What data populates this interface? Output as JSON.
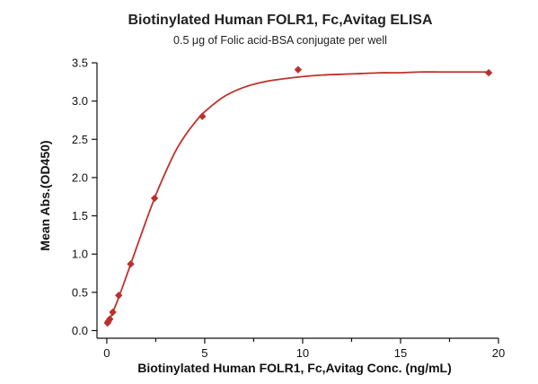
{
  "chart_data": {
    "type": "scatter",
    "title": "Biotinylated Human FOLR1, Fc,Avitag ELISA",
    "subtitle": "0.5 μg of Folic acid-BSA conjugate per well",
    "xlabel": "Biotinylated Human FOLR1, Fc,Avitag Conc. (ng/mL)",
    "ylabel": "Mean Abs.(OD450)",
    "xlim": [
      -0.5,
      20
    ],
    "ylim": [
      -0.1,
      3.5
    ],
    "x_ticks": [
      0,
      5,
      10,
      15,
      20
    ],
    "x_minor_ticks": [
      2.5,
      7.5,
      12.5,
      17.5
    ],
    "y_ticks": [
      0.0,
      0.5,
      1.0,
      1.5,
      2.0,
      2.5,
      3.0,
      3.5
    ],
    "x_tick_labels": [
      "0",
      "5",
      "10",
      "15",
      "20"
    ],
    "y_tick_labels": [
      "0.0",
      "0.5",
      "1.0",
      "1.5",
      "2.0",
      "2.5",
      "3.0",
      "3.5"
    ],
    "grid": false,
    "marker": "diamond",
    "colors": {
      "points": "#b8312b",
      "fit": "#c0312b"
    },
    "series": [
      {
        "x": [
          0.038,
          0.076,
          0.153,
          0.305,
          0.61,
          1.22,
          2.44,
          4.88,
          9.77,
          19.5
        ],
        "y": [
          0.1,
          0.12,
          0.15,
          0.24,
          0.46,
          0.87,
          1.73,
          2.8,
          3.41,
          3.37
        ]
      }
    ],
    "fit_curve": {
      "x": [
        0,
        0.5,
        1,
        1.5,
        2,
        2.5,
        3,
        3.5,
        4,
        4.5,
        5,
        6,
        7,
        8,
        9,
        10,
        11,
        12,
        13,
        14,
        15,
        16,
        17,
        18,
        19,
        19.5
      ],
      "y": [
        0.06,
        0.36,
        0.71,
        1.07,
        1.43,
        1.77,
        2.07,
        2.34,
        2.55,
        2.72,
        2.86,
        3.06,
        3.18,
        3.25,
        3.29,
        3.32,
        3.34,
        3.35,
        3.36,
        3.37,
        3.37,
        3.38,
        3.38,
        3.38,
        3.38,
        3.38
      ]
    }
  }
}
